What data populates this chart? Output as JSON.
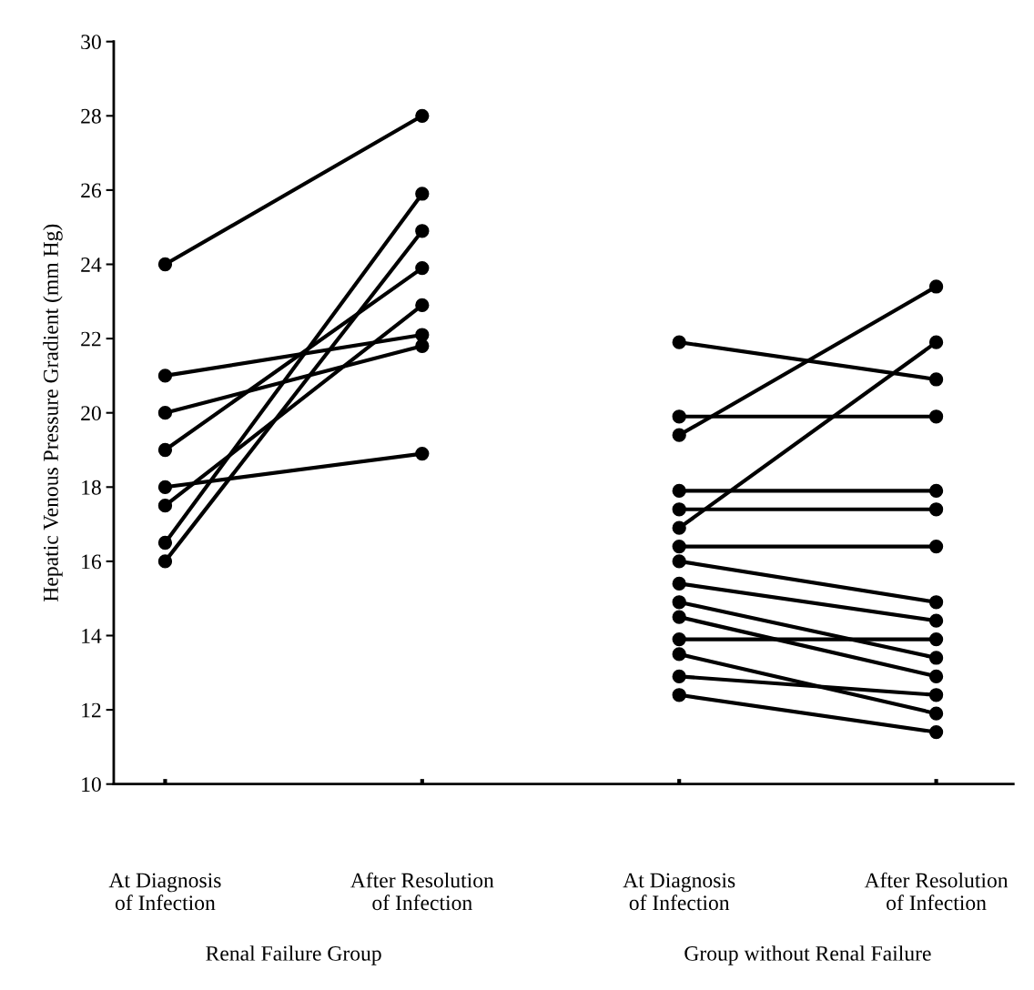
{
  "chart_data": {
    "type": "line",
    "ylabel": "Hepatic Venous Pressure Gradient (mm Hg)",
    "categories": [
      "At Diagnosis\nof Infection",
      "After Resolution\nof Infection",
      "At Diagnosis\nof Infection",
      "After Resolution\nof Infection"
    ],
    "series": [
      {
        "color": "#000000",
        "values": [
          24,
          28,
          null,
          null
        ]
      },
      {
        "color": "#000000",
        "values": [
          21,
          22.1,
          null,
          null
        ]
      },
      {
        "color": "#000000",
        "values": [
          20,
          21.8,
          null,
          null
        ]
      },
      {
        "color": "#000000",
        "values": [
          19,
          23.9,
          null,
          null
        ]
      },
      {
        "color": "#000000",
        "values": [
          18,
          18.9,
          null,
          null
        ]
      },
      {
        "color": "#000000",
        "values": [
          17.5,
          22.9,
          null,
          null
        ]
      },
      {
        "color": "#000000",
        "values": [
          16.5,
          25.9,
          null,
          null
        ]
      },
      {
        "color": "#000000",
        "values": [
          16,
          24.9,
          null,
          null
        ]
      },
      {
        "color": "#000000",
        "values": [
          null,
          null,
          21.9,
          20.9
        ]
      },
      {
        "color": "#000000",
        "values": [
          null,
          null,
          19.9,
          19.9
        ]
      },
      {
        "color": "#000000",
        "values": [
          null,
          null,
          19.4,
          23.4
        ]
      },
      {
        "color": "#000000",
        "values": [
          null,
          null,
          17.9,
          17.9
        ]
      },
      {
        "color": "#000000",
        "values": [
          null,
          null,
          17.4,
          17.4
        ]
      },
      {
        "color": "#000000",
        "values": [
          null,
          null,
          16.9,
          21.9
        ]
      },
      {
        "color": "#000000",
        "values": [
          null,
          null,
          16.4,
          16.4
        ]
      },
      {
        "color": "#000000",
        "values": [
          null,
          null,
          16,
          14.9
        ]
      },
      {
        "color": "#000000",
        "values": [
          null,
          null,
          15.4,
          14.4
        ]
      },
      {
        "color": "#000000",
        "values": [
          null,
          null,
          14.9,
          13.4
        ]
      },
      {
        "color": "#000000",
        "values": [
          null,
          null,
          14.5,
          12.9
        ]
      },
      {
        "color": "#000000",
        "values": [
          null,
          null,
          13.9,
          13.9
        ]
      },
      {
        "color": "#000000",
        "values": [
          null,
          null,
          13.5,
          11.9
        ]
      },
      {
        "color": "#000000",
        "values": [
          null,
          null,
          12.9,
          12.4
        ]
      },
      {
        "color": "#000000",
        "values": [
          null,
          null,
          12.4,
          11.4
        ]
      }
    ],
    "ylim": [
      10,
      30
    ],
    "yticks": [
      10,
      12,
      14,
      16,
      18,
      20,
      22,
      24,
      26,
      28,
      30
    ],
    "marker": "circle",
    "line_style": "solid",
    "annotations": [
      "Renal Failure Group",
      "Group without Renal Failure"
    ]
  }
}
